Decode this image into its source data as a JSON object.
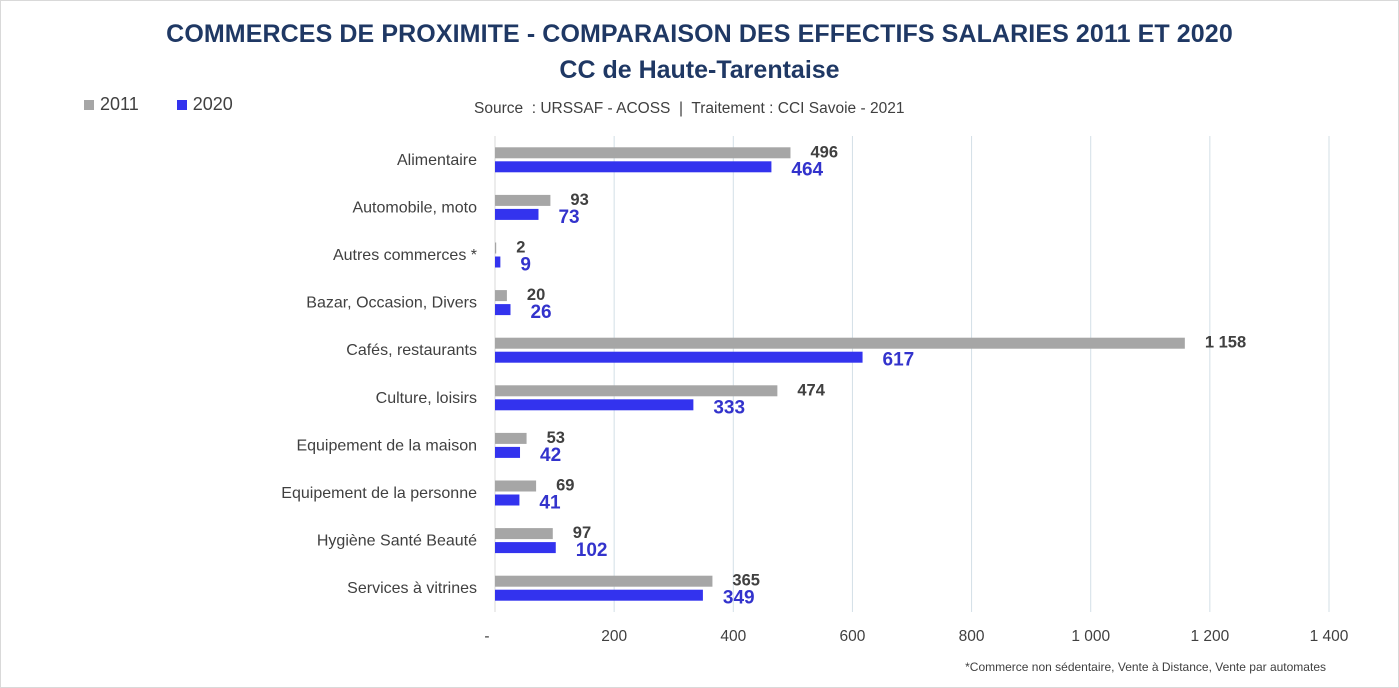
{
  "chart_data": {
    "type": "bar",
    "orientation": "horizontal",
    "title": "COMMERCES DE PROXIMITE - COMPARAISON DES EFFECTIFS SALARIES 2011 ET 2020",
    "subtitle": "CC de Haute-Tarentaise",
    "source": "Source  : URSSAF - ACOSS  |  Traitement : CCI Savoie - 2021",
    "footnote": "*Commerce non sédentaire, Vente à Distance, Vente par automates",
    "categories": [
      "Alimentaire",
      "Automobile, moto",
      "Autres commerces *",
      "Bazar, Occasion, Divers",
      "Cafés, restaurants",
      "Culture, loisirs",
      "Equipement de la maison",
      "Equipement de la personne",
      "Hygiène Santé Beauté",
      "Services à vitrines"
    ],
    "series": [
      {
        "name": "2011",
        "color": "#a6a6a6",
        "label_color": "#404040",
        "values": [
          496,
          93,
          2,
          20,
          1158,
          474,
          53,
          69,
          97,
          365
        ],
        "labels": [
          "496",
          "93",
          "2",
          "20",
          "1 158",
          "474",
          "53",
          "69",
          "97",
          "365"
        ]
      },
      {
        "name": "2020",
        "color": "#3333ee",
        "label_color": "#3333cc",
        "values": [
          464,
          73,
          9,
          26,
          617,
          333,
          42,
          41,
          102,
          349
        ],
        "labels": [
          "464",
          "73",
          "9",
          "26",
          "617",
          "333",
          "42",
          "41",
          "102",
          "349"
        ]
      }
    ],
    "xlim": [
      0,
      1400
    ],
    "xticks": [
      0,
      200,
      400,
      600,
      800,
      1000,
      1200,
      1400
    ],
    "xtick_labels": [
      "-",
      "200",
      "400",
      "600",
      "800",
      "1 000",
      "1 200",
      "1 400"
    ],
    "grid": true,
    "legend": "top-left"
  }
}
